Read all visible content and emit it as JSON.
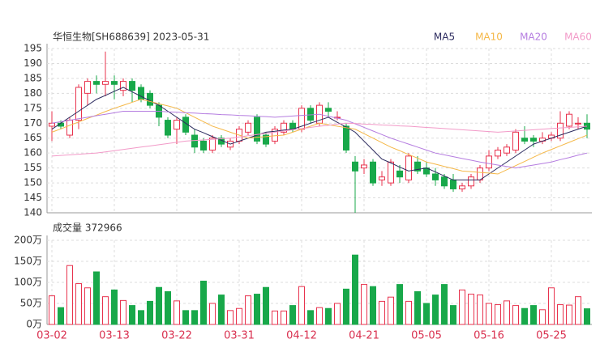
{
  "chart_data": [
    {
      "type": "candlestick",
      "title": "华恒生物[SH688639] 2023-05-31",
      "up_color": "#e8334e",
      "down_color": "#18a84a",
      "open": [
        169,
        170,
        166,
        171,
        180,
        184,
        183,
        184,
        181,
        184,
        182,
        180,
        176,
        171,
        168,
        172,
        166,
        164,
        161,
        165,
        162,
        164,
        167,
        172,
        166,
        164,
        167,
        170,
        168,
        175,
        170,
        175,
        172,
        169,
        157,
        155,
        157,
        151,
        150,
        154,
        151,
        157,
        155,
        153,
        152,
        151,
        148,
        149,
        151,
        155,
        159,
        160,
        161,
        165,
        165,
        164,
        165,
        165,
        169,
        170,
        170
      ],
      "high": [
        174,
        171,
        172,
        183,
        185,
        186,
        194,
        186,
        185,
        185,
        183,
        181,
        177,
        172,
        172,
        173,
        168,
        165,
        166,
        166,
        165,
        169,
        171,
        173,
        167,
        169,
        171,
        171,
        176,
        176,
        177,
        177,
        174,
        170,
        159,
        158,
        158,
        154,
        158,
        156,
        160,
        159,
        157,
        155,
        153,
        153,
        150,
        153,
        156,
        161,
        162,
        163,
        168,
        169,
        166,
        167,
        167,
        174,
        174,
        172,
        173
      ],
      "low": [
        164,
        168,
        165,
        168,
        176,
        180,
        179,
        178,
        179,
        177,
        177,
        175,
        169,
        165,
        163,
        166,
        160,
        160,
        160,
        162,
        161,
        163,
        166,
        163,
        162,
        163,
        166,
        167,
        167,
        170,
        169,
        172,
        171,
        160,
        140,
        153,
        149,
        149,
        149,
        150,
        150,
        153,
        152,
        149,
        148,
        147,
        147,
        148,
        150,
        154,
        158,
        159,
        160,
        163,
        162,
        163,
        164,
        164,
        168,
        168,
        165
      ],
      "close": [
        170,
        169,
        171,
        182,
        184,
        183,
        184,
        183,
        184,
        181,
        178,
        176,
        172,
        166,
        171,
        167,
        162,
        161,
        165,
        163,
        164,
        168,
        170,
        164,
        163,
        168,
        170,
        168,
        175,
        171,
        176,
        174,
        172,
        161,
        154,
        156,
        150,
        152,
        157,
        152,
        159,
        154,
        153,
        151,
        149,
        148,
        149,
        152,
        155,
        159,
        161,
        162,
        167,
        164,
        164,
        165,
        166,
        170,
        173,
        170,
        168
      ],
      "series": [
        {
          "name": "MA5",
          "color": "#2b2a5e",
          "values": [
            168,
            170,
            172,
            174,
            176,
            178,
            179.3,
            180.7,
            182,
            180.5,
            179,
            177.5,
            176,
            174,
            172,
            170,
            168,
            166.8,
            165.5,
            164.3,
            163,
            164,
            165,
            166,
            167,
            167.3,
            167.7,
            168,
            169,
            170,
            171,
            172,
            170.3,
            168.7,
            167,
            164,
            161,
            158,
            156.7,
            155.3,
            154,
            154.5,
            155,
            153.7,
            152.3,
            151,
            151,
            151,
            151,
            153,
            155,
            157,
            159,
            161,
            163,
            164,
            165,
            166,
            167,
            168,
            169
          ]
        },
        {
          "name": "MA10",
          "color": "#f5b848",
          "values": [
            167,
            168.1,
            169.3,
            170.4,
            171.6,
            172.7,
            173.9,
            175,
            176,
            177,
            178,
            177.3,
            176.5,
            175.8,
            175,
            173.5,
            172,
            170.5,
            169,
            168,
            167,
            166,
            165,
            165.3,
            165.5,
            165.8,
            166,
            167,
            168,
            169,
            170,
            169.5,
            169,
            168.5,
            168,
            166.5,
            165,
            163.5,
            162,
            160.8,
            159.5,
            158.3,
            157,
            156.3,
            155.5,
            154.8,
            154,
            153.8,
            153.5,
            153.3,
            153,
            154.4,
            155.8,
            157.2,
            158.6,
            160,
            161.2,
            162.4,
            163.6,
            164.8,
            166
          ]
        },
        {
          "name": "MA20",
          "color": "#b57de0",
          "values": [
            170,
            170.5,
            171,
            171.5,
            172,
            172.5,
            173,
            173.5,
            174,
            174,
            174,
            174,
            174,
            173.8,
            173.7,
            173.5,
            173.4,
            173.2,
            173.1,
            172.9,
            172.8,
            172.6,
            172.5,
            172.3,
            172.2,
            172,
            172.2,
            172.4,
            172.6,
            172.8,
            173,
            172.3,
            171.7,
            171,
            169.8,
            168.6,
            167.4,
            166.2,
            165,
            164,
            163,
            162,
            161,
            160,
            159.4,
            158.8,
            158.2,
            157.6,
            157,
            156.5,
            156,
            155.5,
            155,
            155.5,
            156,
            156.5,
            157,
            157.8,
            158.5,
            159.3,
            160
          ]
        },
        {
          "name": "MA60",
          "color": "#f29ac8",
          "values": [
            159,
            159.2,
            159.4,
            159.6,
            159.8,
            160,
            160.4,
            160.8,
            161.2,
            161.6,
            162,
            162.4,
            162.8,
            163.2,
            163.6,
            164,
            164.2,
            164.4,
            164.6,
            164.8,
            165,
            165.4,
            165.8,
            166.2,
            166.6,
            167,
            167.4,
            167.8,
            168.2,
            168.6,
            169,
            169.3,
            169.7,
            170,
            169.9,
            169.7,
            169.6,
            169.4,
            169.3,
            169.1,
            169,
            168.8,
            168.6,
            168.4,
            168.2,
            168,
            167.8,
            167.6,
            167.4,
            167.2,
            167,
            167.2,
            167.4,
            167.6,
            167.8,
            168,
            168.2,
            168.4,
            168.6,
            168.8,
            169
          ]
        }
      ],
      "ylim": [
        140,
        195
      ],
      "yticks": [
        140,
        145,
        150,
        155,
        160,
        165,
        170,
        175,
        180,
        185,
        190,
        195
      ],
      "grid": true
    },
    {
      "type": "bar",
      "title": "成交量 372966",
      "categories": [
        "03-02",
        null,
        null,
        null,
        null,
        null,
        null,
        "03-13",
        null,
        null,
        null,
        null,
        null,
        null,
        "03-22",
        null,
        null,
        null,
        null,
        null,
        null,
        "03-31",
        null,
        null,
        null,
        null,
        null,
        null,
        "04-12",
        null,
        null,
        null,
        null,
        null,
        null,
        "04-21",
        null,
        null,
        null,
        null,
        null,
        null,
        "05-05",
        null,
        null,
        null,
        null,
        null,
        null,
        "05-16",
        null,
        null,
        null,
        null,
        null,
        null,
        "05-25",
        null,
        null,
        null,
        null
      ],
      "values": [
        68,
        40,
        140,
        97,
        87,
        125,
        66,
        82,
        57,
        45,
        33,
        55,
        88,
        78,
        56,
        33,
        33,
        103,
        50,
        70,
        33,
        38,
        68,
        72,
        88,
        32,
        32,
        45,
        90,
        33,
        40,
        38,
        50,
        84,
        165,
        95,
        90,
        55,
        65,
        95,
        55,
        78,
        50,
        70,
        95,
        45,
        82,
        72,
        70,
        50,
        47,
        56,
        45,
        38,
        45,
        35,
        87,
        47,
        46,
        66,
        37.3
      ],
      "ylim": [
        0,
        200
      ],
      "yticks": [
        {
          "value": 0,
          "label": "0万"
        },
        {
          "value": 50,
          "label": "50万"
        },
        {
          "value": 100,
          "label": "100万"
        },
        {
          "value": 150,
          "label": "150万"
        },
        {
          "value": 200,
          "label": "200万"
        }
      ],
      "grid": true
    }
  ]
}
